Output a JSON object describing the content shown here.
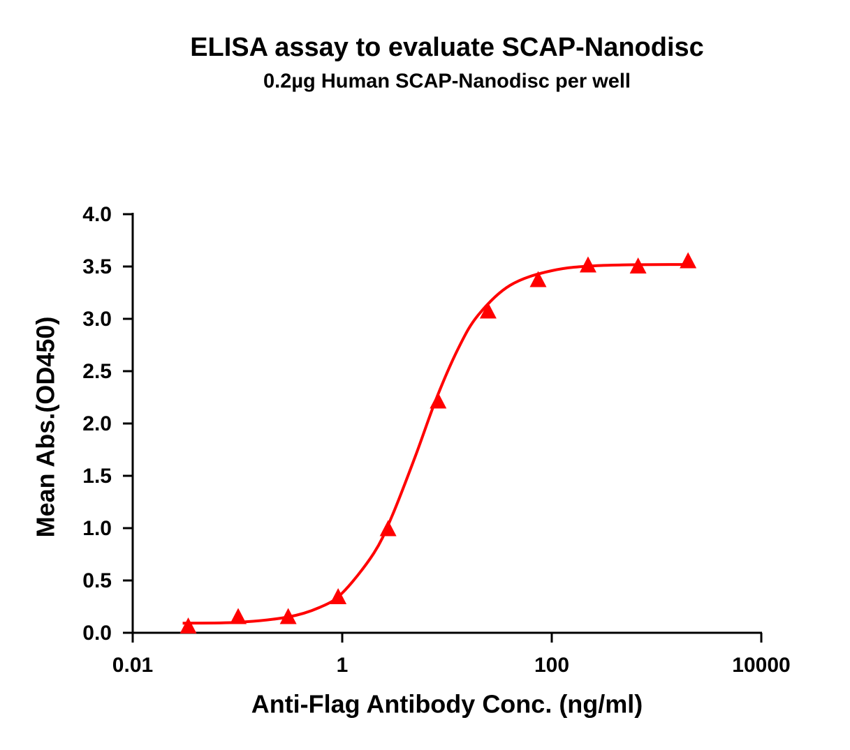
{
  "chart_data": {
    "type": "scatter",
    "title": "ELISA assay to evaluate SCAP-Nanodisc",
    "subtitle": "0.2µg Human SCAP-Nanodisc per well",
    "x_label": "Anti-Flag Antibody Conc. (ng/ml)",
    "y_label": "Mean Abs.(OD450)",
    "xscale": "log",
    "xlim": [
      0.01,
      10000
    ],
    "xticks": [
      0.01,
      1,
      100,
      10000
    ],
    "ylim": [
      0,
      4
    ],
    "yticks": [
      {
        "value": 0,
        "label": "0.0"
      },
      {
        "value": 0.5,
        "label": "0.5"
      },
      {
        "value": 1,
        "label": "1.0"
      },
      {
        "value": 1.5,
        "label": "1.5"
      },
      {
        "value": 2,
        "label": "2.0"
      },
      {
        "value": 2.5,
        "label": "2.5"
      },
      {
        "value": 3,
        "label": "3.0"
      },
      {
        "value": 3.5,
        "label": "3.5"
      },
      {
        "value": 4,
        "label": "4.0"
      }
    ],
    "series": [
      {
        "marker": "triangle",
        "color": "#ff0000",
        "x": [
          0.0339,
          0.1016,
          0.305,
          0.914,
          2.74,
          8.23,
          24.7,
          74.1,
          222,
          667,
          2000
        ],
        "values": [
          0.06,
          0.15,
          0.15,
          0.34,
          0.99,
          2.21,
          3.07,
          3.37,
          3.51,
          3.5,
          3.55
        ]
      },
      {
        "marker": "line",
        "color": "#ff0000",
        "x": [
          0.03,
          0.1,
          0.3,
          0.6,
          1,
          2,
          3,
          5,
          8,
          13,
          20,
          40,
          100,
          300,
          2000
        ],
        "values": [
          0.092,
          0.1,
          0.15,
          0.24,
          0.38,
          0.76,
          1.12,
          1.69,
          2.25,
          2.73,
          3.04,
          3.32,
          3.46,
          3.51,
          3.52
        ]
      }
    ]
  }
}
